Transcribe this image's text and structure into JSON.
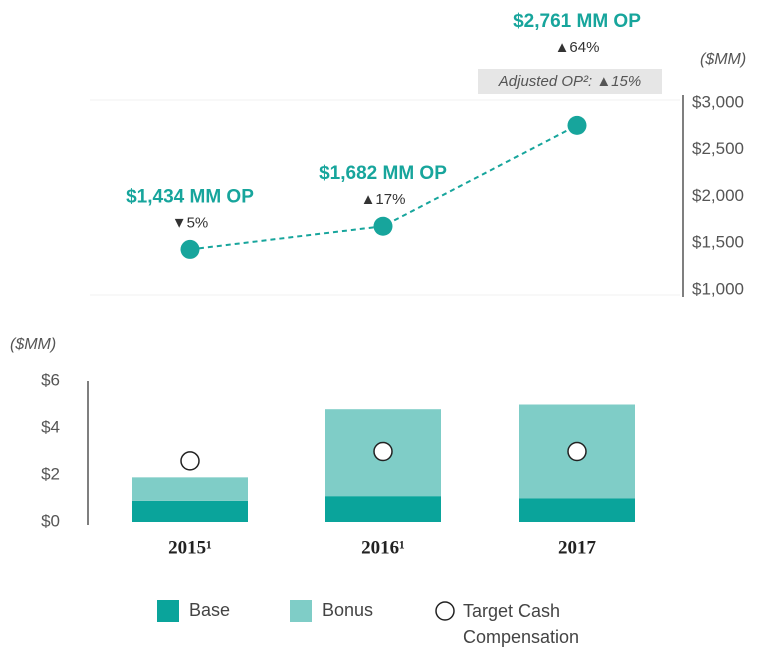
{
  "chart_data": [
    {
      "type": "line",
      "y_axis_label": "($MM)",
      "categories": [
        "2015",
        "2016",
        "2017"
      ],
      "values": [
        1434,
        1682,
        2761
      ],
      "value_labels": [
        "$1,434 MM OP",
        "$1,682 MM OP",
        "$2,761 MM OP"
      ],
      "changes": [
        "▼5%",
        "▲17%",
        "▲64%"
      ],
      "annotation": "Adjusted OP²: ▲15%",
      "color": "#17a59c",
      "ylim": [
        1000,
        3000
      ],
      "yticks": [
        {
          "value": 1000,
          "label": "$1,000"
        },
        {
          "value": 1500,
          "label": "$1,500"
        },
        {
          "value": 2000,
          "label": "$2,000"
        },
        {
          "value": 2500,
          "label": "$2,500"
        },
        {
          "value": 3000,
          "label": "$3,000"
        }
      ]
    },
    {
      "type": "stacked_bar",
      "y_axis_label": "($MM)",
      "categories": [
        "2015¹",
        "2016¹",
        "2017"
      ],
      "series": [
        {
          "name": "Base",
          "color": "#0aa49b",
          "values": [
            0.9,
            1.1,
            1.0
          ]
        },
        {
          "name": "Bonus",
          "color": "#7fcdc7",
          "values": [
            1.0,
            3.7,
            4.0
          ]
        }
      ],
      "markers": {
        "name": "Target Cash Compensation",
        "values": [
          2.6,
          3.0,
          3.0
        ]
      },
      "ylim": [
        0,
        6
      ],
      "yticks": [
        {
          "value": 0,
          "label": "$0"
        },
        {
          "value": 2,
          "label": "$2"
        },
        {
          "value": 4,
          "label": "$4"
        },
        {
          "value": 6,
          "label": "$6"
        }
      ]
    }
  ]
}
